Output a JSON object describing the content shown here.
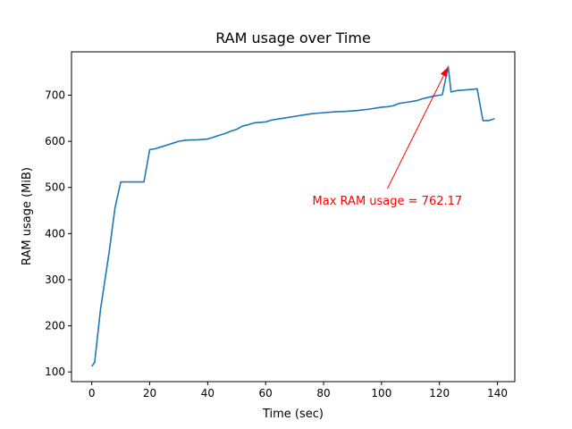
{
  "chart_data": {
    "type": "line",
    "title": "RAM usage over Time",
    "xlabel": "Time (sec)",
    "ylabel": "RAM usage (MiB)",
    "xlim": [
      -7,
      146
    ],
    "ylim": [
      79,
      794
    ],
    "x_ticks": [
      0,
      20,
      40,
      60,
      80,
      100,
      120,
      140
    ],
    "y_ticks": [
      100,
      200,
      300,
      400,
      500,
      600,
      700
    ],
    "x_tick_labels": [
      "0",
      "20",
      "40",
      "60",
      "80",
      "100",
      "120",
      "140"
    ],
    "y_tick_labels": [
      "100",
      "200",
      "300",
      "400",
      "500",
      "600",
      "700"
    ],
    "grid": false,
    "line_color": "#1f77b4",
    "series": [
      {
        "name": "",
        "x": [
          0,
          1,
          3,
          6,
          8,
          10,
          12,
          14,
          16,
          18,
          20,
          22,
          24,
          26,
          28,
          30,
          32,
          34,
          36,
          38,
          40,
          42,
          44,
          46,
          48,
          50,
          52,
          54,
          56,
          58,
          60,
          62,
          64,
          66,
          68,
          70,
          72,
          74,
          76,
          78,
          80,
          84,
          88,
          92,
          96,
          100,
          102,
          104,
          106,
          108,
          110,
          112,
          114,
          116,
          118,
          120,
          121,
          123,
          124,
          126,
          128,
          130,
          132,
          133,
          135,
          137,
          139
        ],
        "y": [
          112,
          121,
          235,
          360,
          455,
          512,
          512,
          512,
          512,
          512,
          582,
          584,
          588,
          592,
          596,
          600,
          602,
          603,
          603,
          604,
          605,
          609,
          613,
          617,
          622,
          626,
          633,
          636,
          640,
          641,
          642,
          646,
          648,
          650,
          652,
          654,
          656,
          658,
          660,
          661,
          662,
          664,
          665,
          667,
          670,
          674,
          675,
          677,
          682,
          684,
          686,
          688,
          692,
          695,
          698,
          700,
          701,
          762.17,
          707,
          710,
          711,
          712,
          713,
          714,
          645,
          645,
          649
        ]
      }
    ],
    "annotation": {
      "text": "Max RAM usage = 762.17",
      "color": "#ff0000",
      "point": [
        123,
        762.17
      ],
      "text_anchor_point": [
        102,
        470
      ]
    }
  }
}
